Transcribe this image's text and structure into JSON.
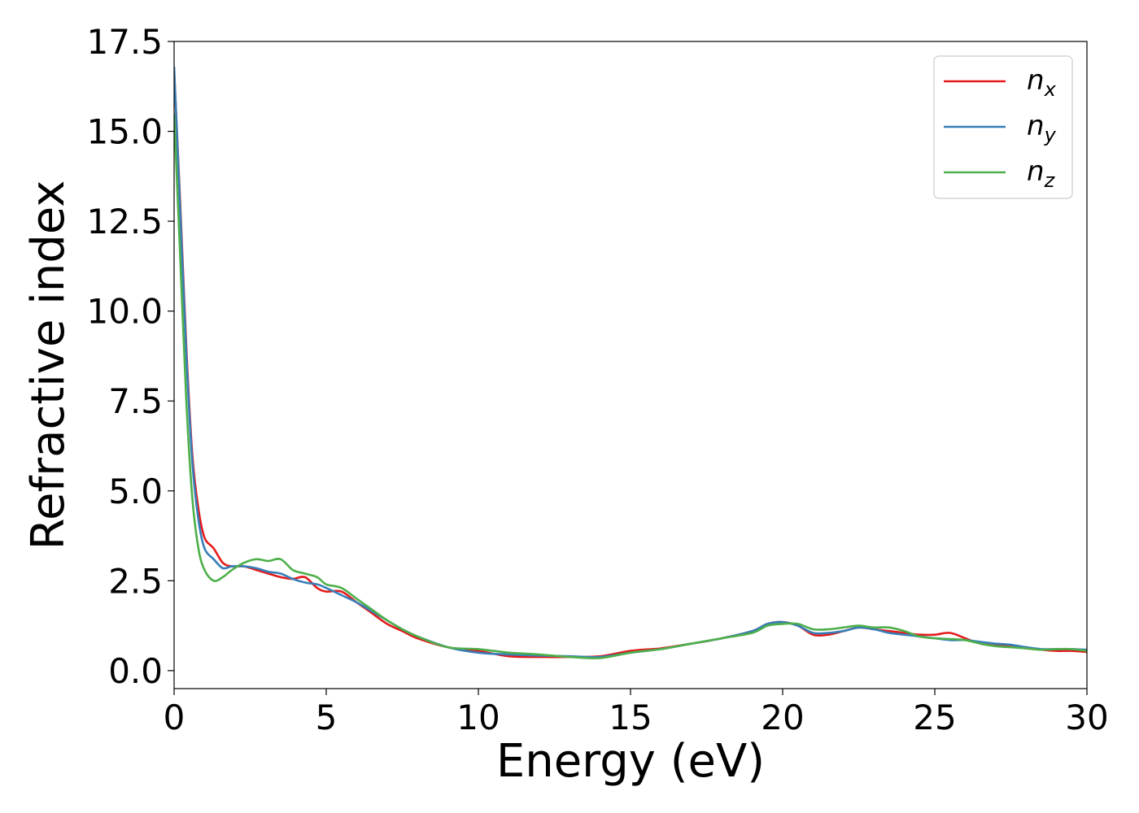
{
  "chart_data": {
    "type": "line",
    "title": "",
    "xlabel": "Energy (eV)",
    "ylabel": "Refractive index",
    "xlim": [
      0,
      30
    ],
    "ylim": [
      -0.5,
      17.5
    ],
    "xticks": [
      0,
      5,
      10,
      15,
      20,
      25,
      30
    ],
    "xtick_labels": [
      "0",
      "5",
      "10",
      "15",
      "20",
      "25",
      "30"
    ],
    "yticks": [
      0,
      2.5,
      5,
      7.5,
      10,
      12.5,
      15,
      17.5
    ],
    "ytick_labels": [
      "0.0",
      "2.5",
      "5.0",
      "7.5",
      "10.0",
      "12.5",
      "15.0",
      "17.5"
    ],
    "grid": false,
    "legend_position": "top-right",
    "series": [
      {
        "name": "n",
        "subscript": "x",
        "color": "#e41a1c",
        "x": [
          0,
          0.2,
          0.4,
          0.6,
          0.8,
          1.0,
          1.3,
          1.6,
          1.9,
          2.3,
          2.7,
          3.1,
          3.5,
          3.9,
          4.3,
          4.7,
          5.0,
          5.5,
          6.0,
          6.5,
          7.0,
          7.5,
          8.0,
          9.0,
          10.0,
          11.0,
          12.0,
          13.0,
          14.0,
          15.0,
          16.0,
          17.0,
          18.0,
          19.0,
          19.5,
          20.0,
          20.5,
          21.0,
          21.5,
          22.0,
          22.5,
          23.0,
          23.5,
          24.0,
          24.5,
          25.0,
          25.5,
          26.0,
          26.5,
          27.0,
          27.5,
          28.0,
          28.5,
          29.0,
          29.5,
          30.0
        ],
        "y": [
          16.7,
          13.0,
          9.0,
          6.0,
          4.5,
          3.7,
          3.4,
          3.0,
          2.9,
          2.9,
          2.8,
          2.7,
          2.6,
          2.55,
          2.6,
          2.3,
          2.2,
          2.2,
          1.9,
          1.6,
          1.3,
          1.1,
          0.9,
          0.65,
          0.55,
          0.4,
          0.38,
          0.38,
          0.4,
          0.55,
          0.62,
          0.75,
          0.9,
          1.1,
          1.3,
          1.35,
          1.25,
          1.0,
          1.0,
          1.1,
          1.2,
          1.15,
          1.1,
          1.05,
          1.0,
          1.0,
          1.05,
          0.9,
          0.75,
          0.7,
          0.68,
          0.62,
          0.58,
          0.55,
          0.55,
          0.52
        ]
      },
      {
        "name": "n",
        "subscript": "y",
        "color": "#377eb8",
        "x": [
          0,
          0.2,
          0.4,
          0.6,
          0.8,
          1.0,
          1.3,
          1.6,
          1.9,
          2.3,
          2.7,
          3.1,
          3.5,
          3.9,
          4.3,
          4.7,
          5.0,
          5.5,
          6.0,
          6.5,
          7.0,
          7.5,
          8.0,
          9.0,
          10.0,
          11.0,
          12.0,
          13.0,
          14.0,
          15.0,
          16.0,
          17.0,
          18.0,
          19.0,
          19.5,
          20.0,
          20.5,
          21.0,
          21.5,
          22.0,
          22.5,
          23.0,
          23.5,
          24.0,
          24.5,
          25.0,
          25.5,
          26.0,
          26.5,
          27.0,
          27.5,
          28.0,
          28.5,
          29.0,
          29.5,
          30.0
        ],
        "y": [
          16.8,
          12.8,
          8.8,
          5.8,
          4.2,
          3.4,
          3.1,
          2.85,
          2.9,
          2.9,
          2.85,
          2.75,
          2.7,
          2.55,
          2.45,
          2.4,
          2.3,
          2.1,
          1.9,
          1.65,
          1.4,
          1.15,
          0.95,
          0.65,
          0.5,
          0.45,
          0.42,
          0.4,
          0.38,
          0.5,
          0.6,
          0.75,
          0.9,
          1.1,
          1.3,
          1.35,
          1.25,
          1.05,
          1.05,
          1.1,
          1.2,
          1.15,
          1.05,
          1.0,
          0.95,
          0.9,
          0.85,
          0.85,
          0.8,
          0.75,
          0.72,
          0.65,
          0.6,
          0.6,
          0.6,
          0.58
        ]
      },
      {
        "name": "n",
        "subscript": "z",
        "color": "#4daf4a",
        "x": [
          0,
          0.2,
          0.4,
          0.6,
          0.8,
          1.0,
          1.3,
          1.6,
          1.9,
          2.3,
          2.7,
          3.1,
          3.5,
          3.9,
          4.3,
          4.7,
          5.0,
          5.5,
          6.0,
          6.5,
          7.0,
          7.5,
          8.0,
          9.0,
          10.0,
          11.0,
          12.0,
          13.0,
          14.0,
          15.0,
          16.0,
          17.0,
          18.0,
          19.0,
          19.5,
          20.0,
          20.5,
          21.0,
          21.5,
          22.0,
          22.5,
          23.0,
          23.5,
          24.0,
          24.5,
          25.0,
          25.5,
          26.0,
          26.5,
          27.0,
          27.5,
          28.0,
          28.5,
          29.0,
          29.5,
          30.0
        ],
        "y": [
          15.5,
          11.5,
          7.5,
          4.8,
          3.4,
          2.8,
          2.5,
          2.6,
          2.8,
          3.0,
          3.1,
          3.05,
          3.1,
          2.8,
          2.7,
          2.6,
          2.4,
          2.3,
          2.0,
          1.7,
          1.4,
          1.15,
          0.95,
          0.65,
          0.6,
          0.5,
          0.45,
          0.38,
          0.35,
          0.5,
          0.6,
          0.75,
          0.9,
          1.05,
          1.25,
          1.3,
          1.3,
          1.15,
          1.15,
          1.2,
          1.25,
          1.2,
          1.2,
          1.1,
          0.95,
          0.9,
          0.88,
          0.85,
          0.75,
          0.68,
          0.65,
          0.62,
          0.58,
          0.6,
          0.6,
          0.55
        ]
      }
    ]
  }
}
